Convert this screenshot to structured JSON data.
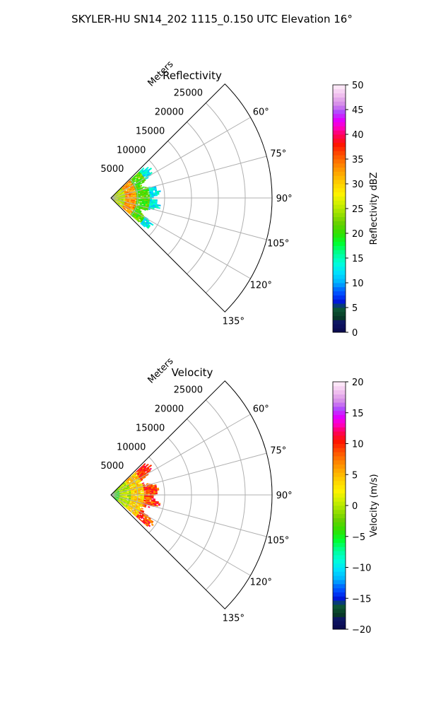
{
  "figure": {
    "title": "SKYLER-HU  SN14_202  1115_0.150 UTC Elevation 16°"
  },
  "chart_data": [
    {
      "type": "heatmap",
      "title": "Reflectivity",
      "projection": "polar sector",
      "theta_range_deg": [
        45,
        135
      ],
      "theta_ticks": [
        "60°",
        "75°",
        "90°",
        "105°",
        "120°",
        "135°"
      ],
      "r_range": [
        0,
        30000
      ],
      "r_ticks": [
        5000,
        10000,
        15000,
        20000,
        25000
      ],
      "r_tick_labels": [
        "5000",
        "10000",
        "15000",
        "20000",
        "25000"
      ],
      "r_axis_label": "Meters",
      "grid": true,
      "colorbar": {
        "label": "Reflectivity dBZ",
        "range": [
          0,
          50
        ],
        "ticks": [
          0,
          5,
          10,
          15,
          20,
          25,
          30,
          35,
          40,
          45,
          50
        ],
        "tick_labels": [
          "0",
          "5",
          "10",
          "15",
          "20",
          "25",
          "30",
          "35",
          "40",
          "45",
          "50"
        ]
      },
      "data_extent": {
        "theta_deg": [
          47,
          131
        ],
        "r_max": 9500
      },
      "field_pattern": [
        {
          "range": [
            0,
            2500
          ],
          "value": 25
        },
        {
          "range": [
            2500,
            4500
          ],
          "value": 33
        },
        {
          "range": [
            4500,
            7000
          ],
          "value": 21
        },
        {
          "range": [
            7000,
            9500
          ],
          "value": 13
        }
      ]
    },
    {
      "type": "heatmap",
      "title": "Velocity",
      "projection": "polar sector",
      "theta_range_deg": [
        45,
        135
      ],
      "theta_ticks": [
        "60°",
        "75°",
        "90°",
        "105°",
        "120°",
        "135°"
      ],
      "r_range": [
        0,
        30000
      ],
      "r_ticks": [
        5000,
        10000,
        15000,
        20000,
        25000
      ],
      "r_tick_labels": [
        "5000",
        "10000",
        "15000",
        "20000",
        "25000"
      ],
      "r_axis_label": "Meters",
      "grid": true,
      "colorbar": {
        "label": "Velocity (m/s)",
        "range": [
          -20,
          20
        ],
        "ticks": [
          -20,
          -15,
          -10,
          -5,
          0,
          5,
          10,
          15,
          20
        ],
        "tick_labels": [
          "−20",
          "−15",
          "−10",
          "−5",
          "0",
          "5",
          "10",
          "15",
          "20"
        ]
      },
      "data_extent": {
        "theta_deg": [
          47,
          131
        ],
        "r_max": 9500
      },
      "field_pattern": [
        {
          "range": [
            0,
            1500
          ],
          "value": -4
        },
        {
          "range": [
            1500,
            3500
          ],
          "value": 0
        },
        {
          "range": [
            3500,
            6000
          ],
          "value": 4
        },
        {
          "range": [
            6000,
            9500
          ],
          "value": 9
        }
      ]
    }
  ]
}
